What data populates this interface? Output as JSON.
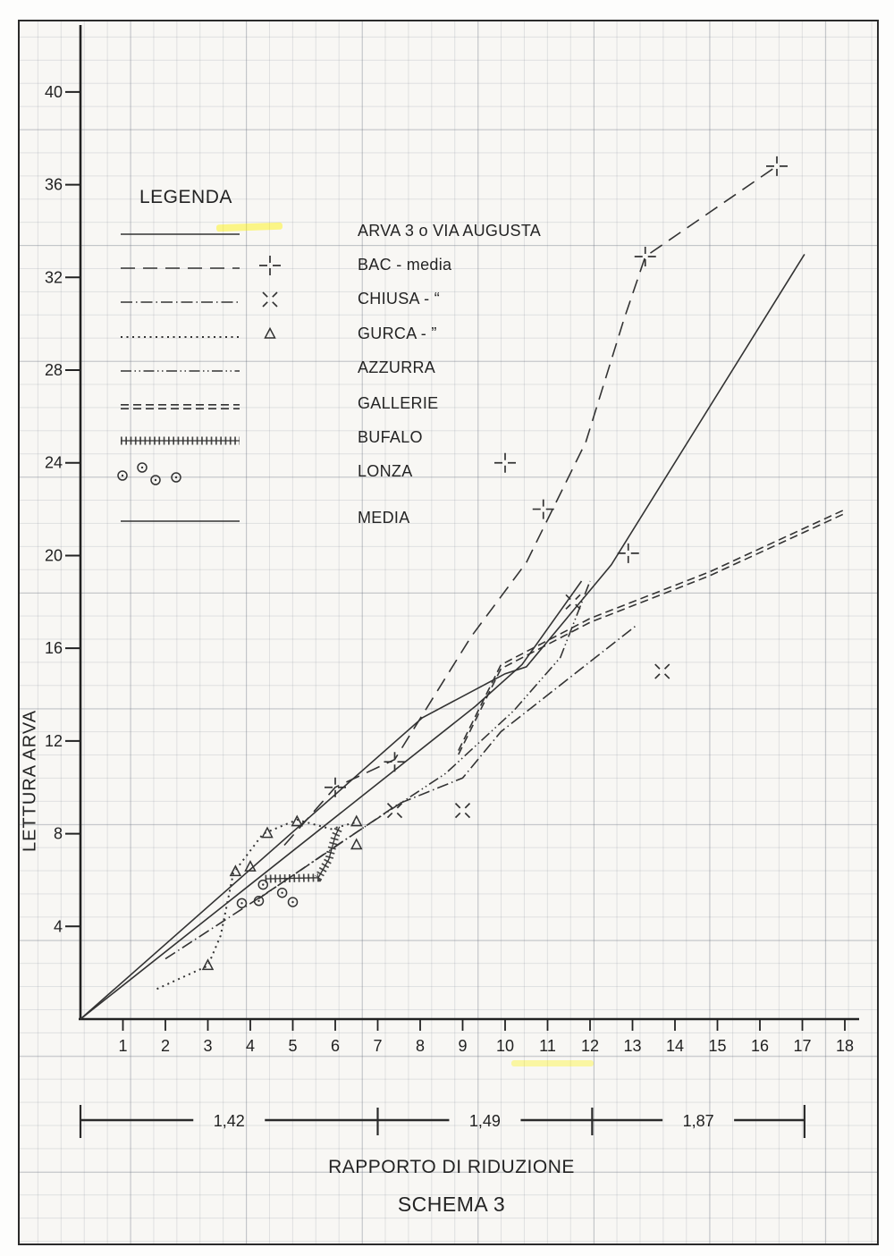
{
  "page": {
    "legend_title": "LEGENDA",
    "x_axis_title": "RAPPORTO DI RIDUZIONE",
    "schema_title": "SCHEMA 3",
    "y_axis_title": "LETTURA ARVA"
  },
  "legend": {
    "title": "LEGENDA",
    "items": [
      {
        "label": "ARVA 3  o  VIA AUGUSTA",
        "style": "solid",
        "marker": null
      },
      {
        "label": "BAC - media",
        "style": "long-dash",
        "marker": "plus"
      },
      {
        "label": "CHIUSA - “",
        "style": "dash-dot",
        "marker": "cross"
      },
      {
        "label": "GURCA - ”",
        "style": "dotted",
        "marker": "triangle"
      },
      {
        "label": "AZZURRA",
        "style": "dash-dot-dot",
        "marker": null
      },
      {
        "label": "GALLERIE",
        "style": "double-dash",
        "marker": null
      },
      {
        "label": "BUFALO",
        "style": "hatched",
        "marker": null
      },
      {
        "label": "LONZA",
        "style": "circles",
        "marker": "circle-dot"
      },
      {
        "label": "MEDIA",
        "style": "solid",
        "marker": null
      }
    ]
  },
  "axes": {
    "x_ticks": [
      "1",
      "2",
      "3",
      "4",
      "5",
      "6",
      "7",
      "8",
      "9",
      "10",
      "11",
      "12",
      "13",
      "14",
      "15",
      "16",
      "17",
      "18"
    ],
    "y_ticks": [
      "40",
      "36",
      "32",
      "28",
      "24",
      "20",
      "16",
      "12",
      "8",
      "4"
    ]
  },
  "scan_marks": {
    "highlighter_color": "#fff200"
  },
  "chart_data": {
    "type": "line",
    "title": "SCHEMA 3",
    "xlabel": "RAPPORTO DI RIDUZIONE",
    "ylabel": "LETTURA ARVA",
    "xlim": [
      0,
      18.6
    ],
    "ylim": [
      0,
      42.5
    ],
    "x_tick_values": [
      1,
      2,
      3,
      4,
      5,
      6,
      7,
      8,
      9,
      10,
      11,
      12,
      13,
      14,
      15,
      16,
      17,
      18
    ],
    "y_tick_values": [
      40,
      36,
      32,
      28,
      24,
      20,
      16,
      12,
      8,
      4
    ],
    "grid": true,
    "legend_position": "upper-left",
    "series": [
      {
        "name": "ARVA 3 o VIA AUGUSTA",
        "style": "solid",
        "marker": null,
        "points": [
          [
            0,
            0
          ],
          [
            8.05,
            13.0
          ],
          [
            10.0,
            14.9
          ],
          [
            10.5,
            15.2
          ],
          [
            12.5,
            19.6
          ],
          [
            17.05,
            33.0
          ]
        ],
        "marker_points": []
      },
      {
        "name": "BAC - media",
        "style": "long-dash",
        "marker": "plus",
        "points": [
          [
            4.8,
            7.5
          ],
          [
            6.0,
            10.0
          ],
          [
            7.4,
            11.2
          ],
          [
            9.2,
            16.5
          ],
          [
            10.5,
            19.7
          ],
          [
            11.9,
            24.9
          ],
          [
            12.8,
            30.2
          ],
          [
            13.3,
            32.9
          ],
          [
            16.4,
            36.8
          ]
        ],
        "marker_points": [
          [
            6.0,
            10.0
          ],
          [
            7.4,
            11.1
          ],
          [
            10.0,
            24.0
          ],
          [
            10.9,
            22.0
          ],
          [
            12.9,
            20.1
          ],
          [
            13.3,
            32.9
          ],
          [
            16.4,
            36.8
          ]
        ]
      },
      {
        "name": "CHIUSA - media",
        "style": "dash-dot",
        "marker": "cross",
        "points": [
          [
            2.0,
            2.6
          ],
          [
            4.6,
            5.7
          ],
          [
            7.5,
            9.3
          ],
          [
            9.0,
            10.4
          ],
          [
            9.9,
            12.4
          ],
          [
            13.1,
            17.0
          ]
        ],
        "marker_points": [
          [
            7.4,
            9.0
          ],
          [
            9.0,
            9.0
          ],
          [
            11.6,
            18.0
          ],
          [
            13.7,
            15.0
          ]
        ]
      },
      {
        "name": "GURCA - media",
        "style": "dotted",
        "marker": "triangle",
        "points": [
          [
            1.8,
            1.3
          ],
          [
            2.4,
            1.8
          ],
          [
            3.0,
            2.3
          ],
          [
            3.3,
            3.6
          ],
          [
            3.6,
            6.3
          ],
          [
            4.3,
            8.0
          ],
          [
            5.1,
            8.6
          ],
          [
            5.9,
            8.2
          ],
          [
            6.5,
            8.5
          ]
        ],
        "marker_points": [
          [
            3.0,
            2.3
          ],
          [
            3.65,
            6.35
          ],
          [
            4.0,
            6.55
          ],
          [
            4.4,
            8.0
          ],
          [
            5.1,
            8.5
          ],
          [
            6.5,
            8.5
          ],
          [
            6.5,
            7.5
          ]
        ]
      },
      {
        "name": "AZZURRA",
        "style": "dash-dot-dot",
        "marker": null,
        "points": [
          [
            4.2,
            5.2
          ],
          [
            6.2,
            7.7
          ],
          [
            8.6,
            10.6
          ],
          [
            10.2,
            13.3
          ],
          [
            11.3,
            15.6
          ],
          [
            12.0,
            18.9
          ]
        ],
        "marker_points": []
      },
      {
        "name": "GALLERIE",
        "style": "double-dash",
        "marker": null,
        "points": [
          [
            8.9,
            11.5
          ],
          [
            9.9,
            15.2
          ],
          [
            12.0,
            17.2
          ],
          [
            14.8,
            19.2
          ],
          [
            18.0,
            21.9
          ]
        ],
        "marker_points": []
      },
      {
        "name": "BUFALO",
        "style": "hatched",
        "marker": null,
        "points": [
          [
            4.35,
            6.05
          ],
          [
            5.6,
            6.1
          ],
          [
            5.85,
            6.9
          ],
          [
            6.0,
            7.9
          ],
          [
            6.1,
            8.3
          ]
        ],
        "marker_points": []
      },
      {
        "name": "LONZA",
        "style": "circles",
        "marker": "circle-dot",
        "points": [],
        "marker_points": [
          [
            3.8,
            5.0
          ],
          [
            4.2,
            5.1
          ],
          [
            4.3,
            5.8
          ],
          [
            4.75,
            5.45
          ],
          [
            5.0,
            5.05
          ]
        ]
      },
      {
        "name": "MEDIA",
        "style": "solid",
        "marker": null,
        "points": [
          [
            0,
            0
          ],
          [
            9.3,
            13.5
          ],
          [
            10.4,
            15.3
          ],
          [
            11.8,
            18.9
          ]
        ],
        "marker_points": []
      }
    ],
    "reduction_ratio_annotations": [
      {
        "label": "1,42",
        "x_from": 0,
        "x_to": 7.0
      },
      {
        "label": "1,49",
        "x_from": 7.0,
        "x_to": 12.05
      },
      {
        "label": "1,87",
        "x_from": 12.05,
        "x_to": 17.05
      }
    ]
  }
}
